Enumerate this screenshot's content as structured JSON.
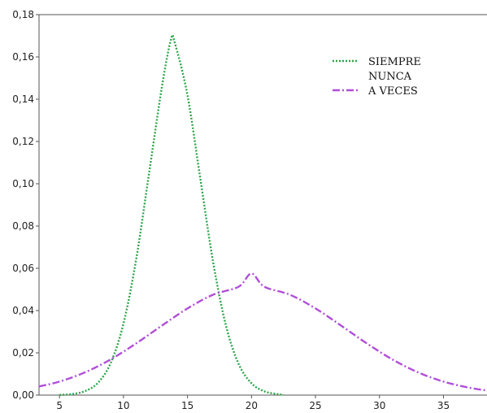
{
  "chart_data": {
    "type": "line",
    "title": "",
    "xlabel": "",
    "ylabel": "",
    "xlim": [
      3.4,
      38.4
    ],
    "ylim": [
      0,
      0.18
    ],
    "x_ticks": [
      "5",
      "10",
      "15",
      "20",
      "25",
      "30",
      "35"
    ],
    "y_ticks": [
      "0,00",
      "0,02",
      "0,04",
      "0,06",
      "0,08",
      "0,10",
      "0,12",
      "0,14",
      "0,16",
      "0,18"
    ],
    "grid": false,
    "legend_position": "top-right",
    "series": [
      {
        "name": "SIEMPRE",
        "color": "#2ea44a",
        "line_style": "dotted",
        "x": [
          5,
          6,
          7,
          8,
          9,
          10,
          11,
          12,
          13,
          13.7,
          14,
          15,
          16,
          17,
          18,
          19,
          20,
          21,
          22,
          22.5
        ],
        "y": [
          0.0001,
          0.0005,
          0.0019,
          0.0058,
          0.0152,
          0.0339,
          0.0646,
          0.1051,
          0.1458,
          0.168,
          0.1668,
          0.1418,
          0.1025,
          0.063,
          0.033,
          0.0147,
          0.0056,
          0.0018,
          0.0005,
          0.0002
        ]
      },
      {
        "name": "NUNCA",
        "color": "",
        "line_style": "none",
        "x": [],
        "y": []
      },
      {
        "name": "A VECES",
        "color": "#b04fd8",
        "line_style": "dash-dot",
        "x": [
          3.4,
          5,
          7,
          9,
          11,
          13,
          15,
          17,
          19,
          20,
          21,
          23,
          25,
          27,
          29,
          31,
          33,
          35,
          37,
          38.4
        ],
        "y": [
          0.0041,
          0.0064,
          0.0108,
          0.0169,
          0.0245,
          0.0329,
          0.041,
          0.0475,
          0.0513,
          0.0575,
          0.0513,
          0.0475,
          0.041,
          0.0329,
          0.0245,
          0.0169,
          0.0108,
          0.0064,
          0.0035,
          0.0022
        ]
      }
    ]
  }
}
